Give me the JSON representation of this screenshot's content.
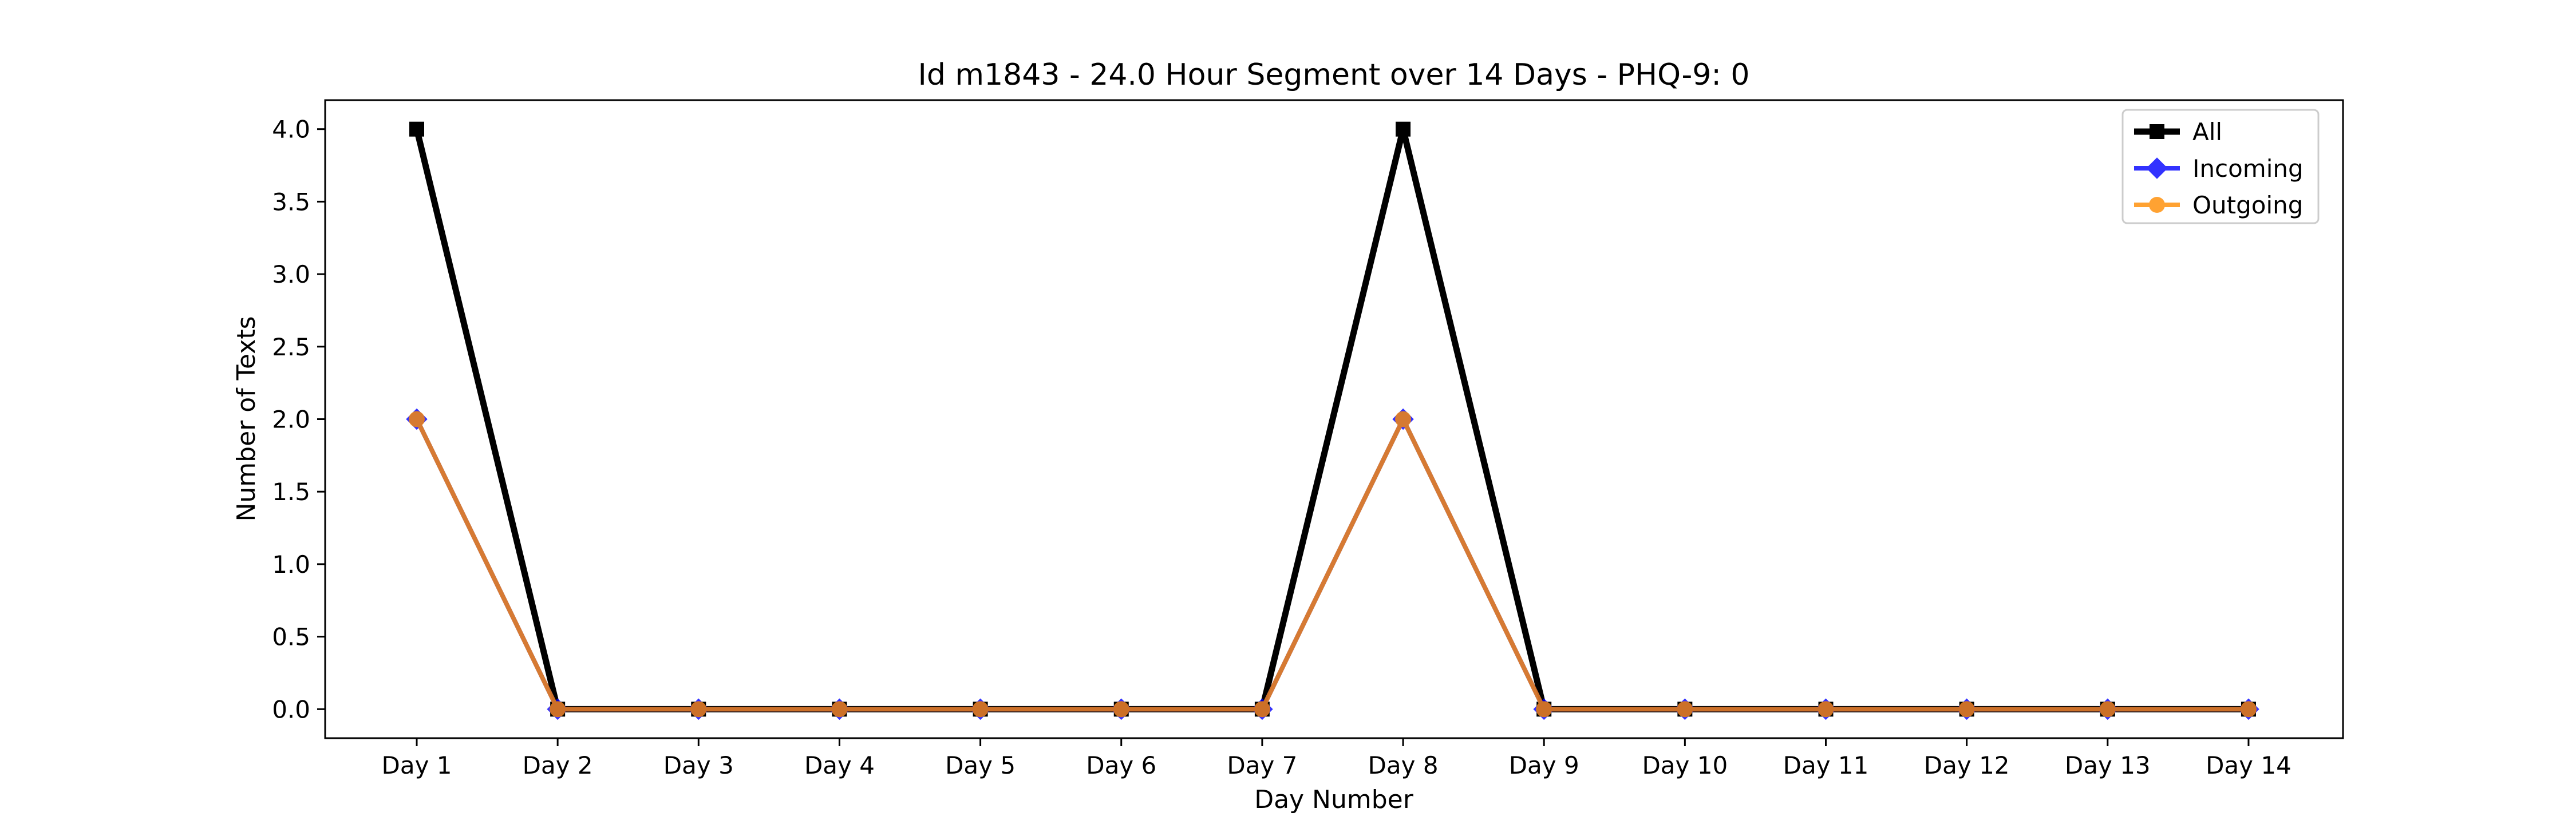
{
  "chart_data": {
    "type": "line",
    "title": "Id m1843 - 24.0 Hour Segment over 14 Days - PHQ-9: 0",
    "xlabel": "Day Number",
    "ylabel": "Number of Texts",
    "categories": [
      "Day 1",
      "Day 2",
      "Day 3",
      "Day 4",
      "Day 5",
      "Day 6",
      "Day 7",
      "Day 8",
      "Day 9",
      "Day 10",
      "Day 11",
      "Day 12",
      "Day 13",
      "Day 14"
    ],
    "ylim": [
      -0.2,
      4.2
    ],
    "yticks": [
      "0.0",
      "0.5",
      "1.0",
      "1.5",
      "2.0",
      "2.5",
      "3.0",
      "3.5",
      "4.0"
    ],
    "grid": false,
    "legend_position": "top-right",
    "series": [
      {
        "name": "All",
        "color": "#000000",
        "marker": "square",
        "values": [
          4,
          0,
          0,
          0,
          0,
          0,
          0,
          4,
          0,
          0,
          0,
          0,
          0,
          0
        ]
      },
      {
        "name": "Incoming",
        "color": "#0000ff",
        "marker": "diamond",
        "values": [
          2,
          0,
          0,
          0,
          0,
          0,
          0,
          2,
          0,
          0,
          0,
          0,
          0,
          0
        ]
      },
      {
        "name": "Outgoing",
        "color": "#ff8c00",
        "marker": "circle",
        "values": [
          2,
          0,
          0,
          0,
          0,
          0,
          0,
          2,
          0,
          0,
          0,
          0,
          0,
          0
        ]
      }
    ]
  }
}
